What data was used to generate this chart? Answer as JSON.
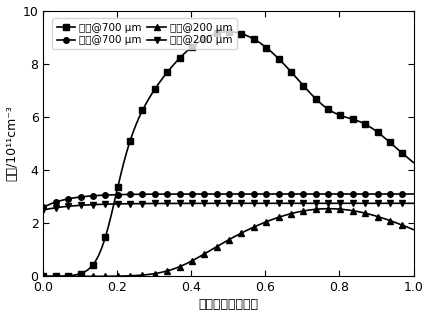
{
  "title": "",
  "xlabel": "归一化的放电间距",
  "ylabel": "密度/10¹¹cm⁻³",
  "xlim": [
    0.0,
    1.0
  ],
  "ylim": [
    0,
    10
  ],
  "yticks": [
    0,
    2,
    4,
    6,
    8,
    10
  ],
  "xticks": [
    0.0,
    0.2,
    0.4,
    0.6,
    0.8,
    1.0
  ],
  "legend_labels": [
    "电子@700 μm",
    "离子@700 μm",
    "电子@200 μm",
    "离子@200 μm"
  ],
  "line_color": "#000000",
  "background_color": "#ffffff",
  "fig_width": 4.29,
  "fig_height": 3.17,
  "dpi": 100
}
